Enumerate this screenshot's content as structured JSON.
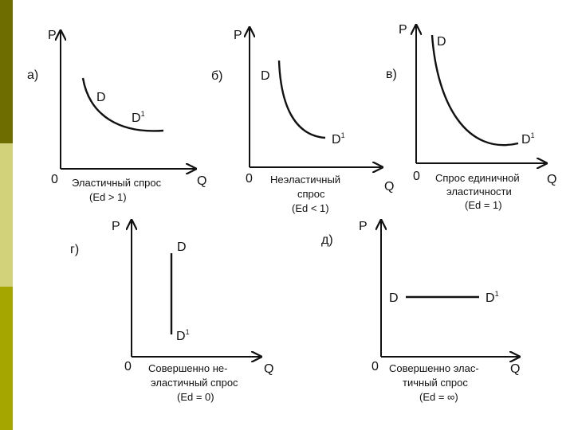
{
  "theme": {
    "sidebar_colors": [
      "#6e6e00",
      "#d2d27a",
      "#a6a600"
    ]
  },
  "axis_labels": {
    "p": "P",
    "q": "Q",
    "origin": "0"
  },
  "panels": [
    {
      "id": "a",
      "tag": "а)",
      "d": "D",
      "d1": "D",
      "d1_sup": "1",
      "caption_1": "Эластичный спрос",
      "caption_2": "(Ed > 1)"
    },
    {
      "id": "b",
      "tag": "б)",
      "d": "D",
      "d1": "D",
      "d1_sup": "1",
      "caption_1": "Неэластичный",
      "caption_2": "спрос",
      "caption_3": "(Ed < 1)"
    },
    {
      "id": "v",
      "tag": "в)",
      "d": "D",
      "d1": "D",
      "d1_sup": "1",
      "caption_1": "Спрос единичной",
      "caption_2": "эластичности",
      "caption_3": "(Ed = 1)"
    },
    {
      "id": "g",
      "tag": "г)",
      "d": "D",
      "d1": "D",
      "d1_sup": "1",
      "caption_1": "Совершенно не-",
      "caption_2": "эластичный спрос",
      "caption_3": "(Ed = 0)"
    },
    {
      "id": "d",
      "tag": "д)",
      "d": "D",
      "d1": "D",
      "d1_sup": "1",
      "caption_1": "Совершенно элас-",
      "caption_2": "тичный спрос",
      "caption_3": "(Ed = ∞)"
    }
  ]
}
